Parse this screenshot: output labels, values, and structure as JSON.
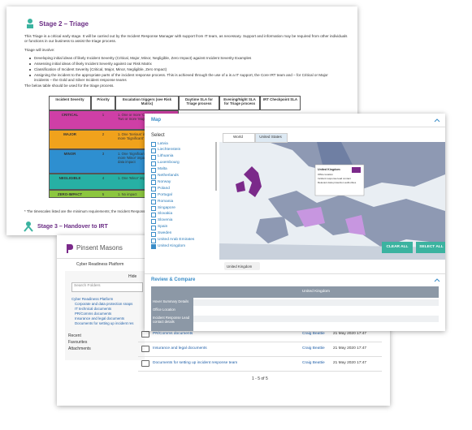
{
  "document": {
    "title": "Stage 2 – Triage",
    "paragraphs": [
      "This Triage is a critical early stage. It will be carried out by the Incident Response Manager with support from IT team, as necessary. Support and information may be required from other individuals or functions in our business to assist the triage process.",
      "Triage will involve:"
    ],
    "bullets": [
      "Developing initial ideas of likely Incident Severity (Critical, Major, Minor, Negligible, Zero Impact) against Incident Severity Examples",
      "Assessing initial ideas of likely Incident Severity against our Risk Matrix",
      "Classification of Incident Severity (Critical, Major, Minor, Negligible, Zero Impact)",
      "Assigning the incident to the appropriate parts of the incident response process. This is achieved through the use of a is a IT support, the Core IRT team and – for Critical or Major incidents – the Gold and Silver Incident response teams"
    ],
    "table_intro": "The below table should be used for the triage process.",
    "table": {
      "headers": [
        "Incident Severity",
        "Priority",
        "Escalation triggers (see Risk Matrix)",
        "Daytime SLA for Triage process",
        "Evening/Night SLA for Triage process",
        "IRT Checkpoint SLA"
      ],
      "rows": [
        {
          "severity": "CRITICAL",
          "priority": "1",
          "triggers": "1. One or more 'Critical' impacts 2. Two or more 'Major' impacts",
          "color": "#cf3fa6"
        },
        {
          "severity": "MAJOR",
          "priority": "2",
          "triggers": "1. One 'Serious' impact 2. Two or more 'Significant' impacts",
          "color": "#f0a21c"
        },
        {
          "severity": "MINOR",
          "priority": "3",
          "triggers": "1. One 'Significant' impact 2. Two or more 'Minor' impacts 3. Any personal data impact",
          "color": "#2e8fd0"
        },
        {
          "severity": "NEGLIGIBLE",
          "priority": "4",
          "triggers": "1. One 'Minor' impact 2. Rarely 'Triage'",
          "color": "#27b0a4"
        },
        {
          "severity": "ZERO-IMPACT",
          "priority": "5",
          "triggers": "1. No impact",
          "color": "#8cc63f"
        }
      ]
    },
    "footnote": "* The timescales listed are the minimum requirements; the Incident Response",
    "next_stage": "Stage 3 – Handover to IRT"
  },
  "map_panel": {
    "title": "Map",
    "select_label": "Select",
    "countries": [
      {
        "name": "Latvia",
        "selected": false
      },
      {
        "name": "Liechtenstein",
        "selected": false
      },
      {
        "name": "Lithuania",
        "selected": false
      },
      {
        "name": "Luxembourg",
        "selected": false
      },
      {
        "name": "Malta",
        "selected": false
      },
      {
        "name": "Netherlands",
        "selected": false
      },
      {
        "name": "Norway",
        "selected": false
      },
      {
        "name": "Poland",
        "selected": false
      },
      {
        "name": "Portugal",
        "selected": false
      },
      {
        "name": "Romania",
        "selected": false
      },
      {
        "name": "Singapore",
        "selected": false
      },
      {
        "name": "Slovakia",
        "selected": false
      },
      {
        "name": "Slovenia",
        "selected": false
      },
      {
        "name": "Spain",
        "selected": false
      },
      {
        "name": "Sweden",
        "selected": false
      },
      {
        "name": "United Arab Emirates",
        "selected": false
      },
      {
        "name": "United Kingdom",
        "selected": true
      }
    ],
    "tabs": [
      "World",
      "United States"
    ],
    "tooltip": {
      "title": "United Kingdom",
      "lines": [
        "Office location",
        "Incident response lead contact",
        "Relevant data protection authorities"
      ]
    },
    "chip": "United Kingdom",
    "buttons": [
      "CLEAR ALL",
      "SELECT ALL"
    ],
    "review": {
      "title": "Review & Compare",
      "column": "United Kingdom",
      "rows": [
        "Hover Summary Details",
        "Office Location",
        "Incident Response Lead contact details"
      ]
    }
  },
  "file_panel": {
    "logo": "Pinsent Masons",
    "breadcrumb": "Cyber Readiness Platform",
    "hide": "Hide",
    "search_placeholder": "Search Folders",
    "tree": [
      "Cyber Readiness Platform",
      "Corporate and data protection snaps",
      "IT technical documents",
      "PR/Comms documents",
      "Insurance and legal documents",
      "Documents for setting up incident res"
    ],
    "nav": [
      "Recent",
      "Favourites",
      "Attachments"
    ],
    "files": [
      {
        "name": "PR/Comms documents",
        "owner": "Craig Beattie",
        "date": "21 May 2020 17:47"
      },
      {
        "name": "Insurance and legal documents",
        "owner": "Craig Beattie",
        "date": "21 May 2020 17:47"
      },
      {
        "name": "Documents for setting up incident response team",
        "owner": "Craig Beattie",
        "date": "21 May 2020 17:47"
      }
    ],
    "pagination": "1 - 5 of 5"
  }
}
